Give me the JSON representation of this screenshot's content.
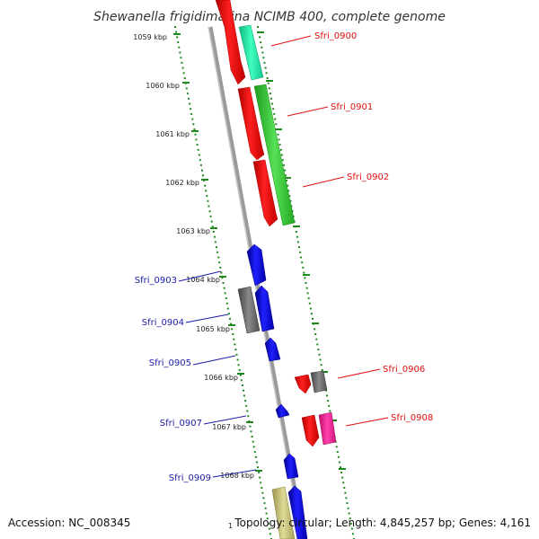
{
  "title": "Shewanella frigidimarina NCIMB 400, complete genome",
  "footer": {
    "accession": "Accession: NC_008345",
    "stray_char": "1",
    "topology": "Topology: circular; Length: 4,845,257 bp; Genes: 4,161"
  },
  "ticks": [
    {
      "label": "1059 kbp"
    },
    {
      "label": "1060 kbp"
    },
    {
      "label": "1061 kbp"
    },
    {
      "label": "1062 kbp"
    },
    {
      "label": "1063 kbp"
    },
    {
      "label": "1064 kbp"
    },
    {
      "label": "1065 kbp"
    },
    {
      "label": "1066 kbp"
    },
    {
      "label": "1067 kbp"
    },
    {
      "label": "1068 kbp"
    }
  ],
  "gene_labels": [
    {
      "text": "Sfri_0900",
      "color": "#e01010"
    },
    {
      "text": "Sfri_0901",
      "color": "#e01010"
    },
    {
      "text": "Sfri_0902",
      "color": "#e01010"
    },
    {
      "text": "Sfri_0903",
      "color": "#1a1aa6"
    },
    {
      "text": "Sfri_0904",
      "color": "#1a1aa6"
    },
    {
      "text": "Sfri_0905",
      "color": "#1a1aa6"
    },
    {
      "text": "Sfri_0906",
      "color": "#e01010"
    },
    {
      "text": "Sfri_0907",
      "color": "#1a1aa6"
    },
    {
      "text": "Sfri_0908",
      "color": "#e01010"
    },
    {
      "text": "Sfri_0909",
      "color": "#1a1aa6"
    }
  ],
  "colors": {
    "backbone": "#8a8a8a",
    "ring_dots": "#1e8a1e",
    "red_gene": "#ff0000",
    "blue_gene": "#0000ee",
    "green_gene": "#33cc33",
    "mint_gene": "#22e8a8",
    "gray_gene": "#666666",
    "magenta_gene": "#ff1493",
    "khaki_gene": "#c8c27a"
  }
}
